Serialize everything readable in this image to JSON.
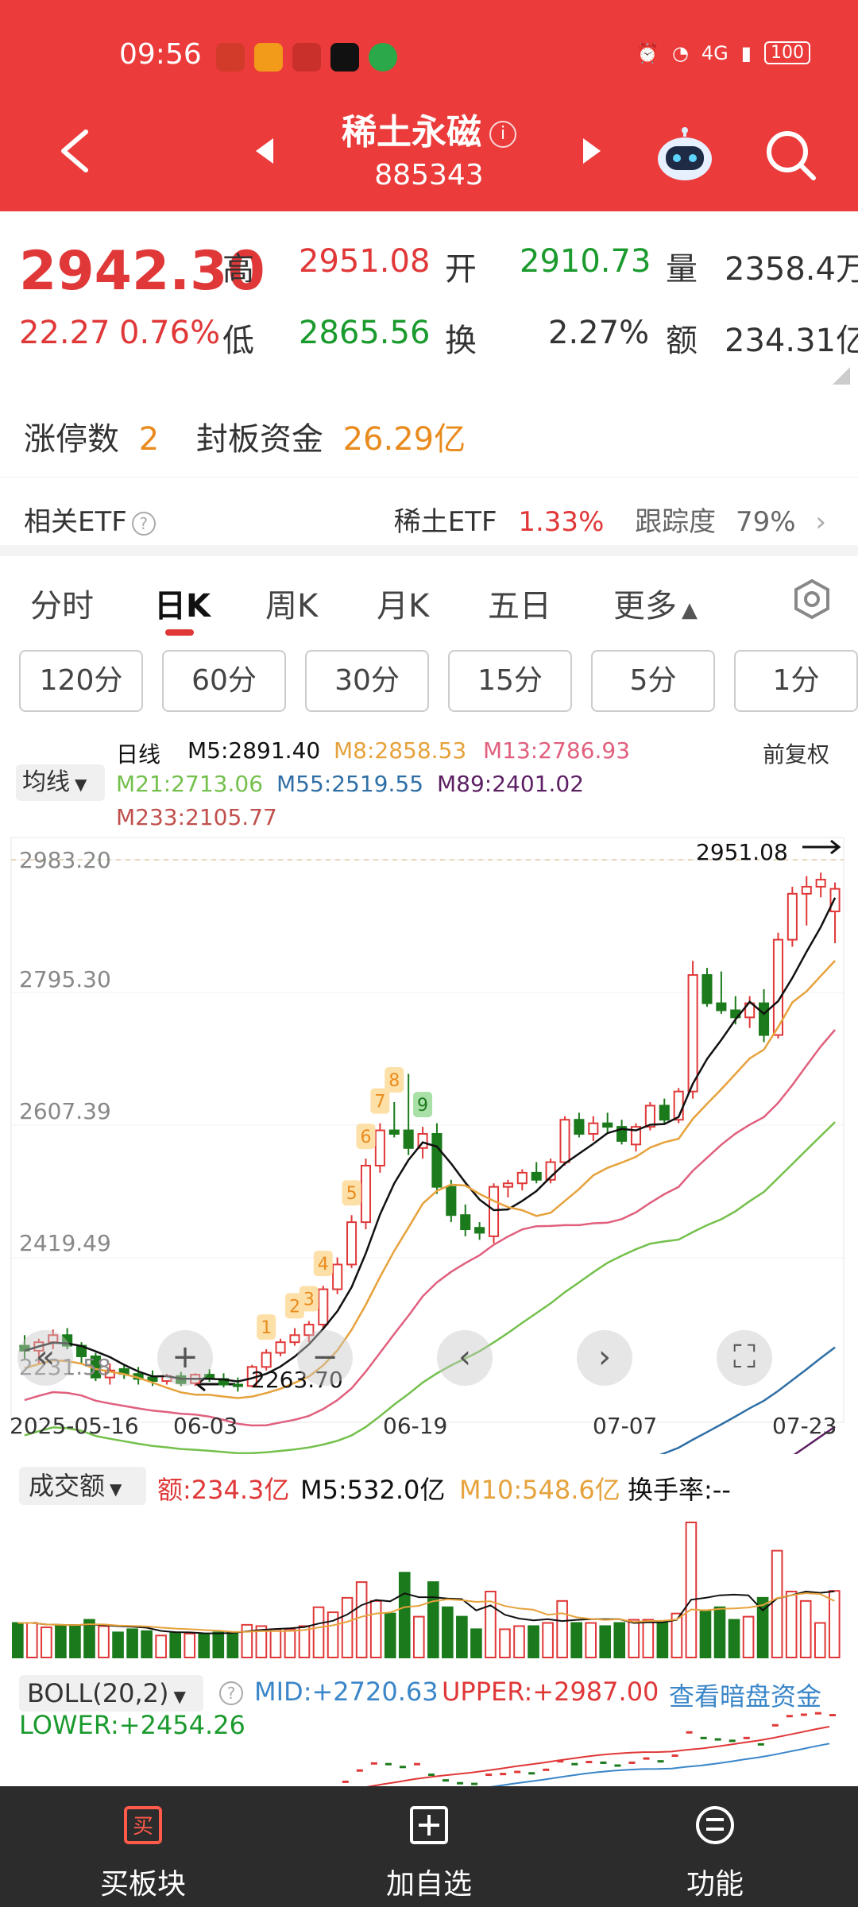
{
  "status": {
    "time": "09:56",
    "battery": "100",
    "network": "4G"
  },
  "header": {
    "title": "稀土永磁",
    "code": "885343",
    "info_icon": "i"
  },
  "quote": {
    "price": "2942.30",
    "change": "22.27",
    "change_pct": "0.76%",
    "high_label": "高",
    "high": "2951.08",
    "open_label": "开",
    "open": "2910.73",
    "volume_label": "量",
    "volume": "2358.4万",
    "low_label": "低",
    "low": "2865.56",
    "turnover_label": "换",
    "turnover": "2.27%",
    "amount_label": "额",
    "amount": "234.31亿"
  },
  "limit": {
    "count_label": "涨停数",
    "count": "2",
    "fund_label": "封板资金",
    "fund": "26.29亿"
  },
  "etf": {
    "label": "相关ETF",
    "name": "稀土ETF",
    "change": "1.33%",
    "track_label": "跟踪度",
    "track": "79%"
  },
  "tabs": [
    "分时",
    "日K",
    "周K",
    "月K",
    "五日",
    "更多"
  ],
  "intervals": [
    "120分",
    "60分",
    "30分",
    "15分",
    "5分",
    "1分"
  ],
  "ma": {
    "select": "均线",
    "period": "日线",
    "adjust": "前复权",
    "m5": "M5:2891.40",
    "m8": "M8:2858.53",
    "m13": "M13:2786.93",
    "m21": "M21:2713.06",
    "m55": "M55:2519.55",
    "m89": "M89:2401.02",
    "m233": "M233:2105.77"
  },
  "chart_data": {
    "type": "candlestick",
    "y_ticks": [
      "2983.20",
      "2795.30",
      "2607.39",
      "2419.49",
      "2231.58"
    ],
    "ylim": [
      2231.58,
      2983.2
    ],
    "x_ticks": [
      "2025-05-16",
      "06-03",
      "06-19",
      "07-07",
      "07-23"
    ],
    "max_label": "2951.08",
    "min_label": "2263.70",
    "sequence_marks": [
      "1",
      "2",
      "3",
      "4",
      "5",
      "6",
      "7",
      "8",
      "9"
    ],
    "candles": [
      [
        2295,
        2310,
        2275,
        2288
      ],
      [
        2288,
        2305,
        2270,
        2300
      ],
      [
        2300,
        2318,
        2290,
        2310
      ],
      [
        2310,
        2320,
        2290,
        2295
      ],
      [
        2295,
        2300,
        2270,
        2280
      ],
      [
        2280,
        2285,
        2245,
        2250
      ],
      [
        2250,
        2270,
        2240,
        2260
      ],
      [
        2262,
        2268,
        2248,
        2255
      ],
      [
        2255,
        2265,
        2240,
        2248
      ],
      [
        2250,
        2260,
        2238,
        2245
      ],
      [
        2245,
        2255,
        2240,
        2252
      ],
      [
        2252,
        2258,
        2238,
        2242
      ],
      [
        2242,
        2256,
        2238,
        2254
      ],
      [
        2254,
        2262,
        2244,
        2248
      ],
      [
        2248,
        2256,
        2236,
        2240
      ],
      [
        2240,
        2250,
        2230,
        2238
      ],
      [
        2238,
        2268,
        2236,
        2265
      ],
      [
        2265,
        2290,
        2260,
        2285
      ],
      [
        2285,
        2305,
        2280,
        2300
      ],
      [
        2300,
        2320,
        2295,
        2310
      ],
      [
        2310,
        2330,
        2300,
        2325
      ],
      [
        2325,
        2380,
        2320,
        2375
      ],
      [
        2375,
        2420,
        2368,
        2410
      ],
      [
        2410,
        2480,
        2405,
        2470
      ],
      [
        2470,
        2560,
        2460,
        2550
      ],
      [
        2550,
        2610,
        2540,
        2600
      ],
      [
        2600,
        2640,
        2590,
        2595
      ],
      [
        2600,
        2680,
        2565,
        2575
      ],
      [
        2575,
        2605,
        2560,
        2595
      ],
      [
        2595,
        2610,
        2510,
        2520
      ],
      [
        2520,
        2530,
        2470,
        2480
      ],
      [
        2480,
        2495,
        2450,
        2460
      ],
      [
        2462,
        2470,
        2445,
        2455
      ],
      [
        2450,
        2525,
        2440,
        2520
      ],
      [
        2520,
        2530,
        2505,
        2525
      ],
      [
        2525,
        2545,
        2515,
        2540
      ],
      [
        2540,
        2555,
        2525,
        2530
      ],
      [
        2530,
        2560,
        2525,
        2555
      ],
      [
        2555,
        2620,
        2550,
        2615
      ],
      [
        2615,
        2625,
        2590,
        2595
      ],
      [
        2595,
        2620,
        2585,
        2610
      ],
      [
        2610,
        2625,
        2595,
        2605
      ],
      [
        2605,
        2615,
        2580,
        2585
      ],
      [
        2580,
        2610,
        2570,
        2605
      ],
      [
        2605,
        2640,
        2600,
        2635
      ],
      [
        2635,
        2645,
        2610,
        2615
      ],
      [
        2615,
        2660,
        2610,
        2655
      ],
      [
        2655,
        2840,
        2645,
        2820
      ],
      [
        2820,
        2830,
        2775,
        2780
      ],
      [
        2780,
        2825,
        2765,
        2770
      ],
      [
        2770,
        2790,
        2750,
        2760
      ],
      [
        2760,
        2790,
        2745,
        2780
      ],
      [
        2780,
        2800,
        2725,
        2735
      ],
      [
        2735,
        2880,
        2730,
        2870
      ],
      [
        2870,
        2945,
        2860,
        2935
      ],
      [
        2935,
        2960,
        2890,
        2945
      ],
      [
        2945,
        2965,
        2930,
        2955
      ],
      [
        2910,
        2951,
        2865,
        2942
      ]
    ]
  },
  "volume": {
    "select": "成交额",
    "amount": "额:234.3亿",
    "m5": "M5:532.0亿",
    "m10": "M10:548.6亿",
    "turnover": "换手率:--"
  },
  "boll": {
    "select": "BOLL(20,2)",
    "mid": "MID:+2720.63",
    "upper": "UPPER:+2987.00",
    "link": "查看暗盘资金",
    "lower": "LOWER:+2454.26"
  },
  "bottom_nav": [
    {
      "label": "买板块",
      "icon": "buy-icon"
    },
    {
      "label": "加自选",
      "icon": "add-square-icon"
    },
    {
      "label": "功能",
      "icon": "menu-circle-icon"
    }
  ],
  "colors": {
    "header": "#eb3b3b",
    "up": "#e03838",
    "down": "#1b7a1b",
    "ma5": "#111111",
    "ma8": "#e6a23c",
    "ma13": "#e0607e",
    "ma21": "#74c04c",
    "ma55": "#2f6fa6",
    "ma89": "#5c1f63"
  }
}
